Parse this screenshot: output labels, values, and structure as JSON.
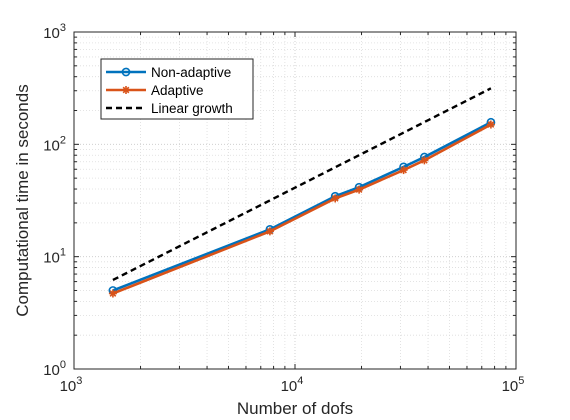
{
  "chart_data": {
    "type": "line",
    "xscale": "log",
    "yscale": "log",
    "xlim": [
      1000,
      100000
    ],
    "ylim": [
      1,
      1000
    ],
    "xlabel": "Number of dofs",
    "ylabel": "Computational time in seconds",
    "x_ticks": [
      {
        "value": 1000,
        "base": "10",
        "exp": "3"
      },
      {
        "value": 10000,
        "base": "10",
        "exp": "4"
      },
      {
        "value": 100000,
        "base": "10",
        "exp": "5"
      }
    ],
    "y_ticks": [
      {
        "value": 1,
        "base": "10",
        "exp": "0"
      },
      {
        "value": 10,
        "base": "10",
        "exp": "1"
      },
      {
        "value": 100,
        "base": "10",
        "exp": "2"
      },
      {
        "value": 1000,
        "base": "10",
        "exp": "3"
      }
    ],
    "grid": true,
    "minor_grid": true,
    "legend_position": "top-left",
    "series": [
      {
        "name": "Non-adaptive",
        "color": "#0072BD",
        "marker": "circle",
        "line_style": "solid",
        "x": [
          1500,
          7700,
          15200,
          19500,
          31000,
          38500,
          77000
        ],
        "y": [
          5.0,
          17.5,
          34.5,
          41.5,
          63.0,
          77.0,
          157.0
        ]
      },
      {
        "name": "Adaptive",
        "color": "#D95319",
        "marker": "asterisk",
        "line_style": "solid",
        "x": [
          1500,
          7700,
          15200,
          19500,
          31000,
          38500,
          77000
        ],
        "y": [
          4.7,
          16.8,
          33.0,
          39.5,
          59.0,
          72.0,
          150.0
        ]
      },
      {
        "name": "Linear growth",
        "color": "#000000",
        "marker": "none",
        "line_style": "dashed",
        "x": [
          1500,
          77000
        ],
        "y": [
          6.2,
          315.0
        ]
      }
    ]
  }
}
